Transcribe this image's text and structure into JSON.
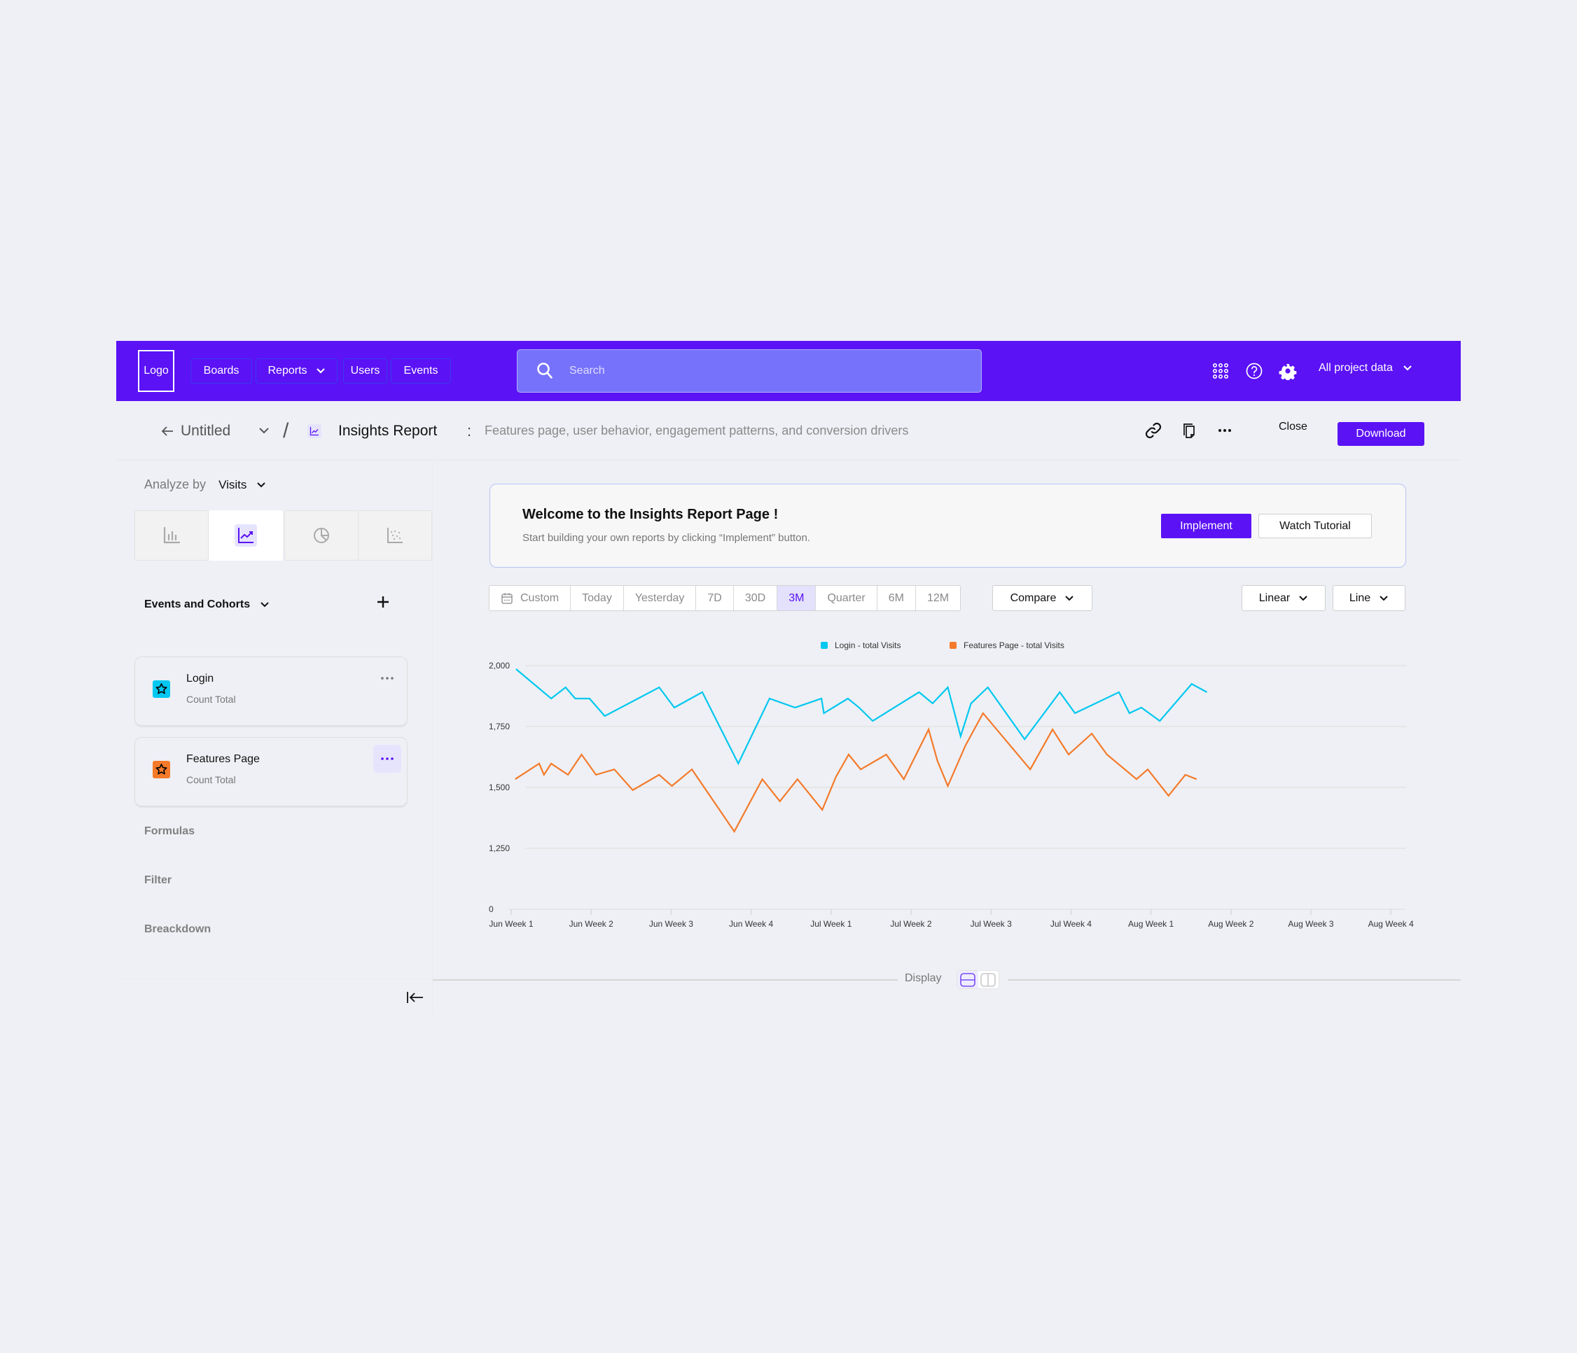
{
  "nav": {
    "logo": "Logo",
    "items": [
      {
        "label": "Boards"
      },
      {
        "label": "Reports",
        "has_dropdown": true
      },
      {
        "label": "Users"
      },
      {
        "label": "Events"
      }
    ],
    "search_placeholder": "Search",
    "icons": [
      "apps-grid-icon",
      "help-icon",
      "settings-gear-icon"
    ],
    "project_selector": "All project data",
    "bg_color": "#5B12F5"
  },
  "subheader": {
    "back_label": "Untitled",
    "separator": "/",
    "report_title": "Insights Report",
    "colon": ":",
    "description": "Features page, user behavior, engagement patterns, and conversion drivers",
    "close_label": "Close",
    "download_label": "Download"
  },
  "sidebar": {
    "analyze_label": "Analyze by",
    "analyze_value": "Visits",
    "chart_types": [
      {
        "name": "bar-chart",
        "active": false
      },
      {
        "name": "line-chart",
        "active": true
      },
      {
        "name": "pie-chart",
        "active": false
      },
      {
        "name": "scatter-chart",
        "active": false
      }
    ],
    "events_heading": "Events and Cohorts",
    "events": [
      {
        "name": "Login",
        "sub": "Count Total",
        "color": "#00C8F0"
      },
      {
        "name": "Features Page",
        "sub": "Count Total",
        "color": "#F47A2A"
      }
    ],
    "links": [
      "Formulas",
      "Filter",
      "Breackdown"
    ]
  },
  "banner": {
    "title": "Welcome to the Insights Report Page !",
    "text": "Start building your own reports by clicking “Implement” button.",
    "implement_label": "Implement",
    "tutorial_label": "Watch Tutorial"
  },
  "ranges": {
    "items": [
      "Custom",
      "Today",
      "Yesterday",
      "7D",
      "30D",
      "3M",
      "Quarter",
      "6M",
      "12M"
    ],
    "selected": "3M",
    "compare_label": "Compare",
    "scale_label": "Linear",
    "type_label": "Line"
  },
  "display": {
    "label": "Display",
    "selected": "stacked"
  },
  "chart_data": {
    "type": "line",
    "title": "",
    "xlabel": "",
    "ylabel": "",
    "y_ticks": [
      "0",
      "1,250",
      "1,500",
      "1,750",
      "2,000"
    ],
    "ylim_visible": [
      1250,
      2000
    ],
    "y_axis_break": "0 shown at bottom below 1,250 (broken axis)",
    "categories": [
      "Jun Week 1",
      "Jun Week 2",
      "Jun Week 3",
      "Jun Week 4",
      "Jul Week 1",
      "Jul Week 2",
      "Jul Week 3",
      "Jul Week 4",
      "Aug Week 1",
      "Aug Week 2",
      "Aug Week 3",
      "Aug Week 4"
    ],
    "grid": true,
    "legend_position": "top-center",
    "series": [
      {
        "name": "Login - total Visits",
        "color": "#00C8F0",
        "points": [
          [
            0.06,
            1986
          ],
          [
            0.5,
            1865
          ],
          [
            0.68,
            1911
          ],
          [
            0.8,
            1865
          ],
          [
            0.98,
            1865
          ],
          [
            1.17,
            1793
          ],
          [
            1.85,
            1911
          ],
          [
            2.04,
            1828
          ],
          [
            2.39,
            1891
          ],
          [
            2.84,
            1598
          ],
          [
            3.23,
            1865
          ],
          [
            3.55,
            1828
          ],
          [
            3.88,
            1865
          ],
          [
            3.91,
            1805
          ],
          [
            4.21,
            1865
          ],
          [
            4.35,
            1828
          ],
          [
            4.52,
            1773
          ],
          [
            5.1,
            1891
          ],
          [
            5.27,
            1845
          ],
          [
            5.46,
            1911
          ],
          [
            5.62,
            1710
          ],
          [
            5.75,
            1845
          ],
          [
            5.96,
            1911
          ],
          [
            6.42,
            1698
          ],
          [
            6.86,
            1891
          ],
          [
            7.05,
            1805
          ],
          [
            7.6,
            1891
          ],
          [
            7.73,
            1805
          ],
          [
            7.88,
            1828
          ],
          [
            8.11,
            1773
          ],
          [
            8.51,
            1925
          ],
          [
            8.7,
            1891
          ]
        ]
      },
      {
        "name": "Features Page - total Visits",
        "color": "#F47A2A",
        "points": [
          [
            0.05,
            1534
          ],
          [
            0.35,
            1598
          ],
          [
            0.41,
            1552
          ],
          [
            0.5,
            1598
          ],
          [
            0.71,
            1552
          ],
          [
            0.88,
            1635
          ],
          [
            1.06,
            1552
          ],
          [
            1.29,
            1574
          ],
          [
            1.52,
            1489
          ],
          [
            1.85,
            1552
          ],
          [
            2.01,
            1506
          ],
          [
            2.26,
            1574
          ],
          [
            2.79,
            1319
          ],
          [
            3.14,
            1534
          ],
          [
            3.36,
            1443
          ],
          [
            3.58,
            1534
          ],
          [
            3.89,
            1408
          ],
          [
            4.06,
            1543
          ],
          [
            4.22,
            1635
          ],
          [
            4.37,
            1574
          ],
          [
            4.69,
            1635
          ],
          [
            4.91,
            1534
          ],
          [
            5.22,
            1738
          ],
          [
            5.33,
            1609
          ],
          [
            5.46,
            1506
          ],
          [
            5.68,
            1672
          ],
          [
            5.9,
            1805
          ],
          [
            6.49,
            1574
          ],
          [
            6.77,
            1738
          ],
          [
            6.97,
            1635
          ],
          [
            7.26,
            1721
          ],
          [
            7.45,
            1635
          ],
          [
            7.82,
            1534
          ],
          [
            7.96,
            1574
          ],
          [
            8.22,
            1466
          ],
          [
            8.43,
            1552
          ],
          [
            8.57,
            1534
          ]
        ]
      }
    ]
  }
}
